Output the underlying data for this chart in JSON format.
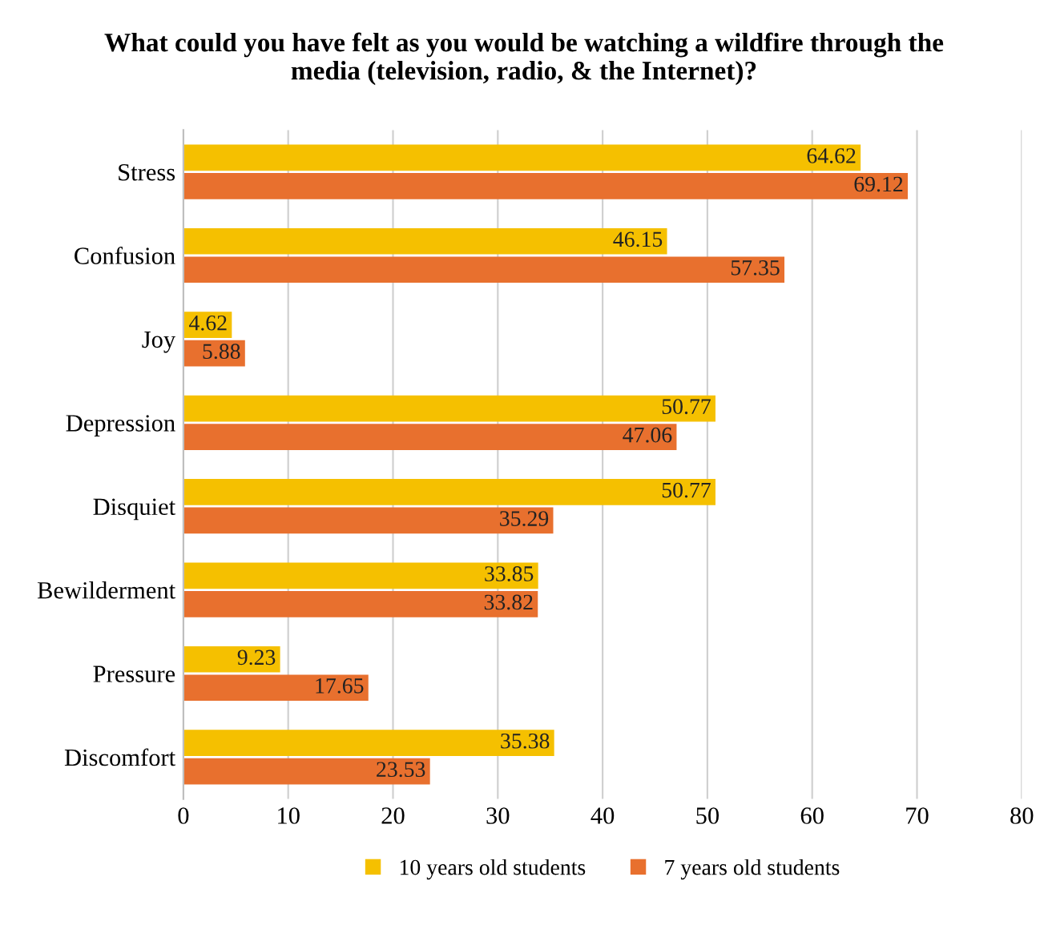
{
  "chart_data": {
    "type": "bar",
    "orientation": "horizontal",
    "title": "What could you have felt as you would be watching a wildfire through the\nmedia (television, radio, & the Internet)?",
    "categories": [
      "Stress",
      "Confusion",
      "Joy",
      "Depression",
      "Disquiet",
      "Bewilderment",
      "Pressure",
      "Discomfort"
    ],
    "series": [
      {
        "name": "10 years old students",
        "color": "#f5c000",
        "values": [
          64.62,
          46.15,
          4.62,
          50.77,
          50.77,
          33.85,
          9.23,
          35.38
        ]
      },
      {
        "name": "7 years old students",
        "color": "#e8702e",
        "values": [
          69.12,
          57.35,
          5.88,
          47.06,
          35.29,
          33.82,
          17.65,
          23.53
        ]
      }
    ],
    "xlim": [
      0,
      80
    ],
    "xticks": [
      0,
      10,
      20,
      30,
      40,
      50,
      60,
      70,
      80
    ],
    "grid": "x",
    "legend": "bottom",
    "data_labels": true
  }
}
